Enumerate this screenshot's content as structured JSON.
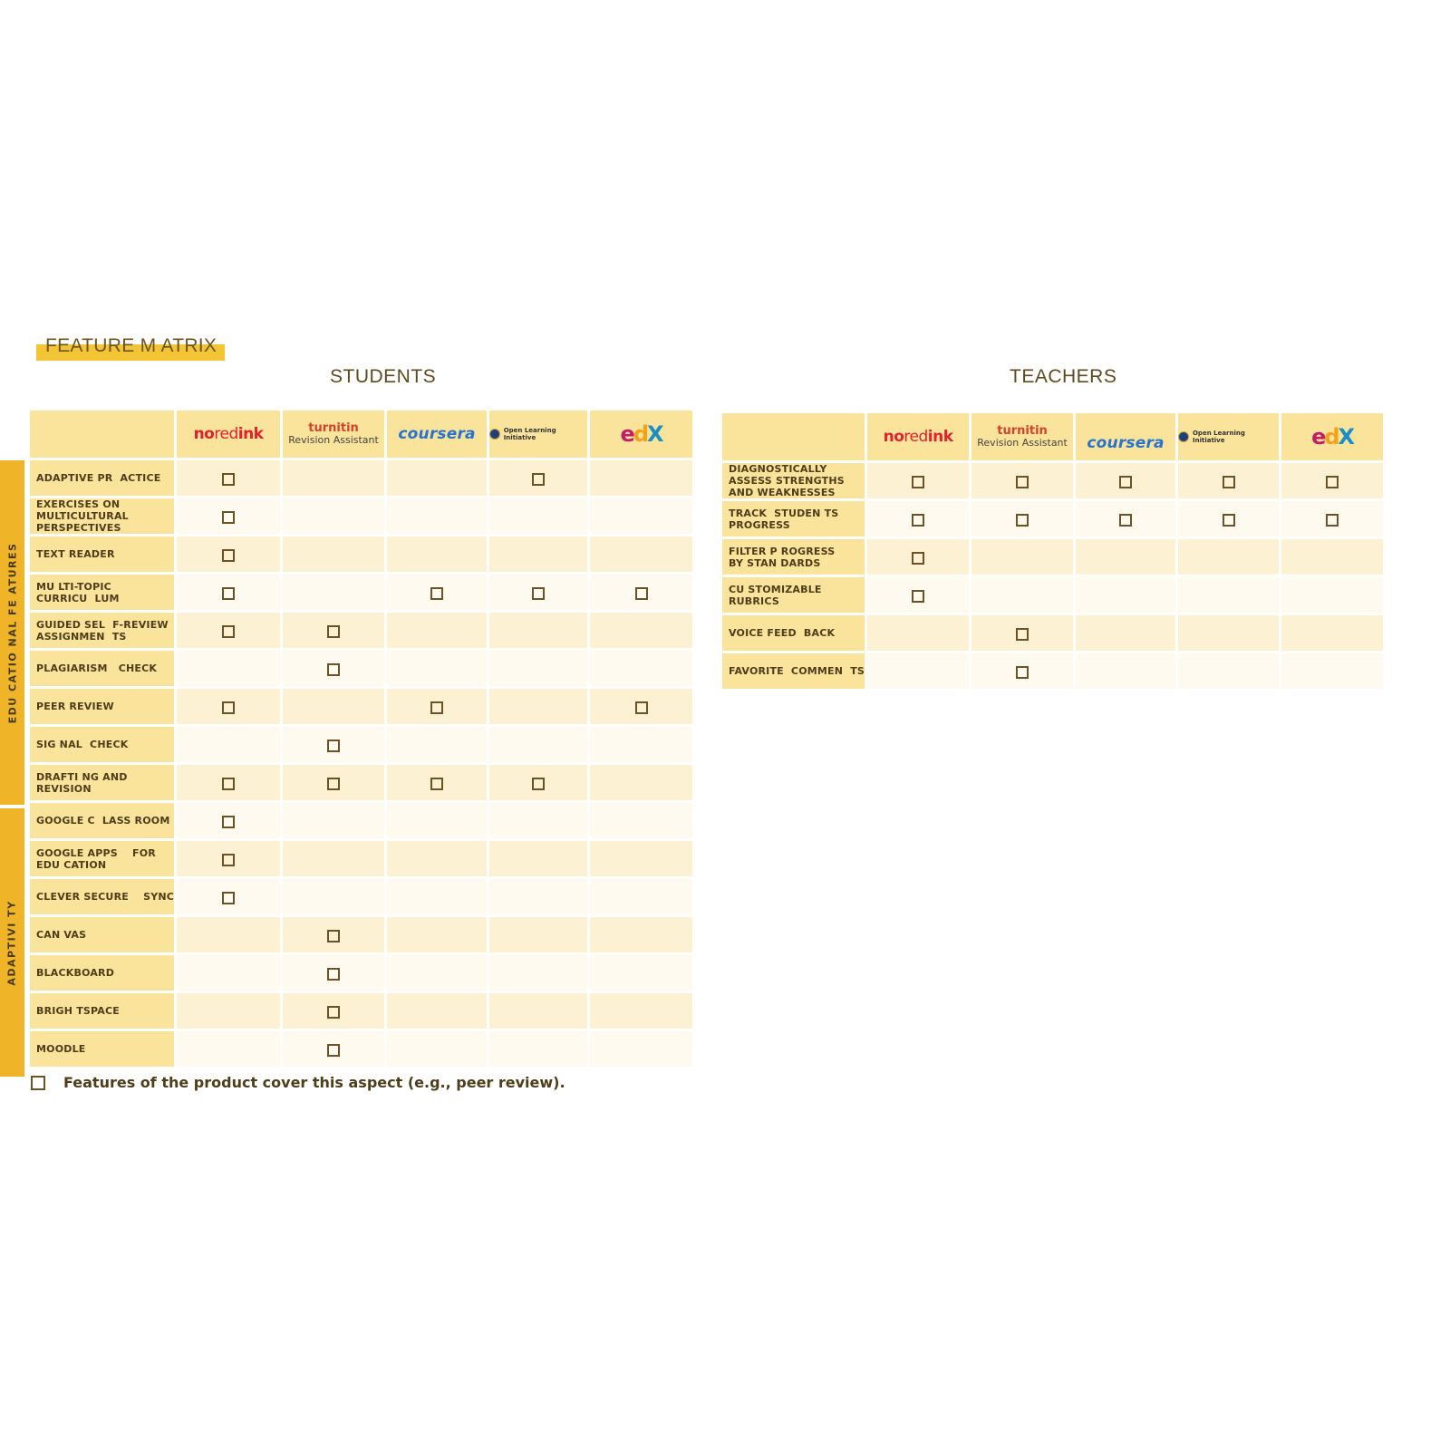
{
  "title": "FEATURE M ATRIX",
  "headings": {
    "students": "STUDENTS",
    "teachers": "TEACHERS"
  },
  "side_tabs": {
    "educational": "EDU CATIO NAL FE ATURES",
    "adaptivity": "ADAPTIVI TY"
  },
  "products": {
    "noredink": {
      "no": "no",
      "red": "red",
      "ink": "ink"
    },
    "turnitin": {
      "name": "turnitin",
      "sub": "Revision Assistant"
    },
    "coursera": "coursera",
    "oli": "Open Learning Initiative",
    "edx": {
      "e": "e",
      "d": "d",
      "x": "X"
    }
  },
  "students_rows": [
    {
      "label": "ADAPTIVE PR  ACTICE",
      "checks": [
        true,
        false,
        false,
        true,
        false
      ]
    },
    {
      "label": "EXERCISES ON\nMULTICULTURAL\nPERSPECTIVES",
      "checks": [
        true,
        false,
        false,
        false,
        false
      ]
    },
    {
      "label": "TEXT READER",
      "checks": [
        true,
        false,
        false,
        false,
        false
      ]
    },
    {
      "label": "MU LTI-TOPIC\nCURRICU  LUM",
      "checks": [
        true,
        false,
        true,
        true,
        true
      ]
    },
    {
      "label": "GUIDED SEL  F-REVIEW\nASSIGNMEN  TS",
      "checks": [
        true,
        true,
        false,
        false,
        false
      ]
    },
    {
      "label": "PLAGIARISM   CHECK",
      "checks": [
        false,
        true,
        false,
        false,
        false
      ]
    },
    {
      "label": "PEER REVIEW",
      "checks": [
        true,
        false,
        true,
        false,
        true
      ]
    },
    {
      "label": "SIG NAL  CHECK",
      "checks": [
        false,
        true,
        false,
        false,
        false
      ]
    },
    {
      "label": "DRAFTI NG AND\nREVISION",
      "checks": [
        true,
        true,
        true,
        true,
        false
      ]
    },
    {
      "label": "GOOGLE C  LASS ROOM",
      "checks": [
        true,
        false,
        false,
        false,
        false
      ]
    },
    {
      "label": "GOOGLE APPS    FOR\nEDU CATION",
      "checks": [
        true,
        false,
        false,
        false,
        false
      ]
    },
    {
      "label": "CLEVER SECURE    SYNC",
      "checks": [
        true,
        false,
        false,
        false,
        false
      ]
    },
    {
      "label": "CAN VAS",
      "checks": [
        false,
        true,
        false,
        false,
        false
      ]
    },
    {
      "label": "BLACKBOARD",
      "checks": [
        false,
        true,
        false,
        false,
        false
      ]
    },
    {
      "label": "BRIGH TSPACE",
      "checks": [
        false,
        true,
        false,
        false,
        false
      ]
    },
    {
      "label": "MOODLE",
      "checks": [
        false,
        true,
        false,
        false,
        false
      ]
    }
  ],
  "teachers_rows": [
    {
      "label": "DIAGNOSTICALLY\nASSESS STRENGTHS\nAND WEAKNESSES",
      "checks": [
        true,
        true,
        true,
        true,
        true
      ]
    },
    {
      "label": "TRACK  STUDEN TS\nPROGRESS",
      "checks": [
        true,
        true,
        true,
        true,
        true
      ]
    },
    {
      "label": "FILTER P ROGRESS\nBY STAN DARDS",
      "checks": [
        true,
        false,
        false,
        false,
        false
      ]
    },
    {
      "label": "CU STOMIZABLE\nRUBRICS",
      "checks": [
        true,
        false,
        false,
        false,
        false
      ]
    },
    {
      "label": "VOICE FEED  BACK",
      "checks": [
        false,
        true,
        false,
        false,
        false
      ]
    },
    {
      "label": "FAVORITE  COMMEN  TS",
      "checks": [
        false,
        true,
        false,
        false,
        false
      ]
    }
  ],
  "legend": "Features of the product cover this aspect (e.g., peer review).",
  "colors": {
    "accent": "#f3c534",
    "header_fill": "#fae39b",
    "cell_light": "#fdf1d4",
    "cell_lighter": "#fffaf0",
    "check_border": "#6b5325"
  }
}
